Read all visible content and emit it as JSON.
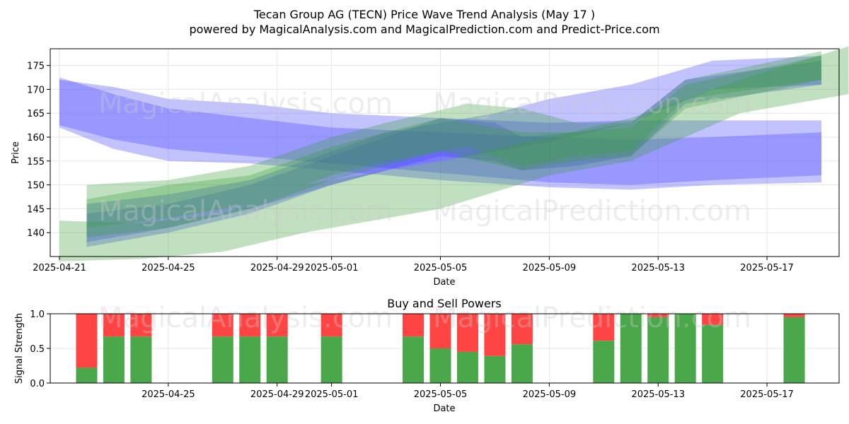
{
  "header": {
    "title": "Tecan Group AG (TECN) Price Wave Trend Analysis (May 17 )",
    "subtitle": "powered by MagicalAnalysis.com and MagicalPrediction.com and Predict-Price.com"
  },
  "watermarks": [
    "MagicalAnalysis.com",
    "MagicalPrediction.com"
  ],
  "colors": {
    "blue": "#4040ff",
    "green": "#3a9e3a",
    "buy": "#4aa84a",
    "sell": "#ff4444"
  },
  "chart_data": [
    {
      "type": "area",
      "name": "price-wave-chart",
      "xlabel": "Date",
      "ylabel": "Price",
      "x_ticks": [
        "2025-04-21",
        "2025-04-25",
        "2025-04-29",
        "2025-05-01",
        "2025-05-05",
        "2025-05-09",
        "2025-05-13",
        "2025-05-17"
      ],
      "y_ticks": [
        140,
        145,
        150,
        155,
        160,
        165,
        170,
        175
      ],
      "ylim": [
        135,
        178.5
      ],
      "xlim": [
        "2025-04-20",
        "2025-05-20"
      ],
      "grid": true,
      "series": [
        {
          "color": "blue",
          "bands": [
            {
              "x": [
                "2025-04-21",
                "2025-04-23",
                "2025-04-25",
                "2025-04-28",
                "2025-05-01",
                "2025-05-05",
                "2025-05-09",
                "2025-05-12",
                "2025-05-15",
                "2025-05-19"
              ],
              "upper": [
                172.5,
                169,
                166,
                164,
                162,
                161,
                160,
                159.5,
                160,
                161
              ],
              "lower": [
                162.5,
                159.5,
                157.5,
                156,
                154.5,
                152.5,
                150.5,
                150,
                151,
                152
              ]
            },
            {
              "x": [
                "2025-04-21",
                "2025-04-23",
                "2025-04-25",
                "2025-04-28",
                "2025-05-01",
                "2025-05-05",
                "2025-05-09",
                "2025-05-12",
                "2025-05-15",
                "2025-05-19"
              ],
              "upper": [
                172,
                170.5,
                168,
                167,
                165,
                164,
                163,
                163.5,
                163.5,
                163.5
              ],
              "lower": [
                162,
                157.5,
                155,
                154.5,
                153,
                151,
                149.5,
                149,
                150,
                150.5
              ]
            },
            {
              "x": [
                "2025-04-22",
                "2025-04-25",
                "2025-04-28",
                "2025-05-01",
                "2025-05-03",
                "2025-05-05",
                "2025-05-07",
                "2025-05-09",
                "2025-05-12",
                "2025-05-15",
                "2025-05-19"
              ],
              "upper": [
                146,
                148,
                151,
                157,
                161,
                163,
                165,
                168,
                171,
                176,
                177
              ],
              "lower": [
                138,
                141,
                145,
                150,
                153,
                155,
                157,
                159,
                163,
                170,
                171
              ]
            },
            {
              "x": [
                "2025-04-22",
                "2025-04-25",
                "2025-04-28",
                "2025-05-01",
                "2025-05-05",
                "2025-05-07",
                "2025-05-08",
                "2025-05-10",
                "2025-05-12",
                "2025-05-14",
                "2025-05-19"
              ],
              "upper": [
                144,
                146,
                150,
                156,
                164,
                163,
                160,
                161,
                163,
                172,
                176
              ],
              "lower": [
                137,
                140,
                144,
                150,
                156,
                155,
                153,
                154,
                156,
                167,
                171
              ]
            }
          ]
        },
        {
          "color": "green",
          "bands": [
            {
              "x": [
                "2025-04-21",
                "2025-04-24",
                "2025-04-27",
                "2025-04-30",
                "2025-05-05",
                "2025-05-09",
                "2025-05-12",
                "2025-05-16",
                "2025-05-20"
              ],
              "upper": [
                142.5,
                142,
                144,
                150,
                155,
                160,
                164,
                172,
                179
              ],
              "lower": [
                134,
                134.5,
                136,
                140,
                145,
                152,
                155,
                165,
                169
              ]
            },
            {
              "x": [
                "2025-04-22",
                "2025-04-25",
                "2025-04-28",
                "2025-05-01",
                "2025-05-03",
                "2025-05-06",
                "2025-05-08",
                "2025-05-10",
                "2025-05-12",
                "2025-05-14",
                "2025-05-19"
              ],
              "upper": [
                150,
                151,
                154,
                160,
                163,
                167,
                166,
                163,
                163,
                172,
                178
              ],
              "lower": [
                141,
                143,
                146,
                152,
                155,
                158,
                154,
                156,
                157,
                168,
                172
              ]
            },
            {
              "x": [
                "2025-04-22",
                "2025-04-25",
                "2025-04-28",
                "2025-05-01",
                "2025-05-05",
                "2025-05-08",
                "2025-05-10",
                "2025-05-12",
                "2025-05-14",
                "2025-05-19"
              ],
              "upper": [
                147,
                150,
                152,
                158,
                164,
                161,
                161,
                162,
                171,
                177
              ],
              "lower": [
                139,
                141,
                145,
                151,
                157,
                153,
                155,
                156,
                166,
                172
              ]
            }
          ]
        }
      ]
    },
    {
      "type": "bar",
      "name": "buy-sell-powers-chart",
      "title": "Buy and Sell Powers",
      "xlabel": "Date",
      "ylabel": "Signal Strength",
      "x_ticks": [
        "2025-04-25",
        "2025-04-29",
        "2025-05-01",
        "2025-05-05",
        "2025-05-09",
        "2025-05-13",
        "2025-05-17"
      ],
      "y_ticks": [
        "0.0",
        "0.5",
        "1.0"
      ],
      "ylim": [
        0,
        1
      ],
      "xlim": [
        "2025-04-20",
        "2025-05-20"
      ],
      "dates": [
        "2025-04-22",
        "2025-04-23",
        "2025-04-24",
        "2025-04-27",
        "2025-04-28",
        "2025-04-29",
        "2025-05-01",
        "2025-05-04",
        "2025-05-05",
        "2025-05-06",
        "2025-05-07",
        "2025-05-08",
        "2025-05-11",
        "2025-05-12",
        "2025-05-13",
        "2025-05-14",
        "2025-05-15",
        "2025-05-18"
      ],
      "buy": [
        0.22,
        0.67,
        0.67,
        0.67,
        0.67,
        0.67,
        0.67,
        0.67,
        0.5,
        0.45,
        0.39,
        0.56,
        0.61,
        1.0,
        0.95,
        1.0,
        0.84,
        0.95
      ]
    }
  ]
}
